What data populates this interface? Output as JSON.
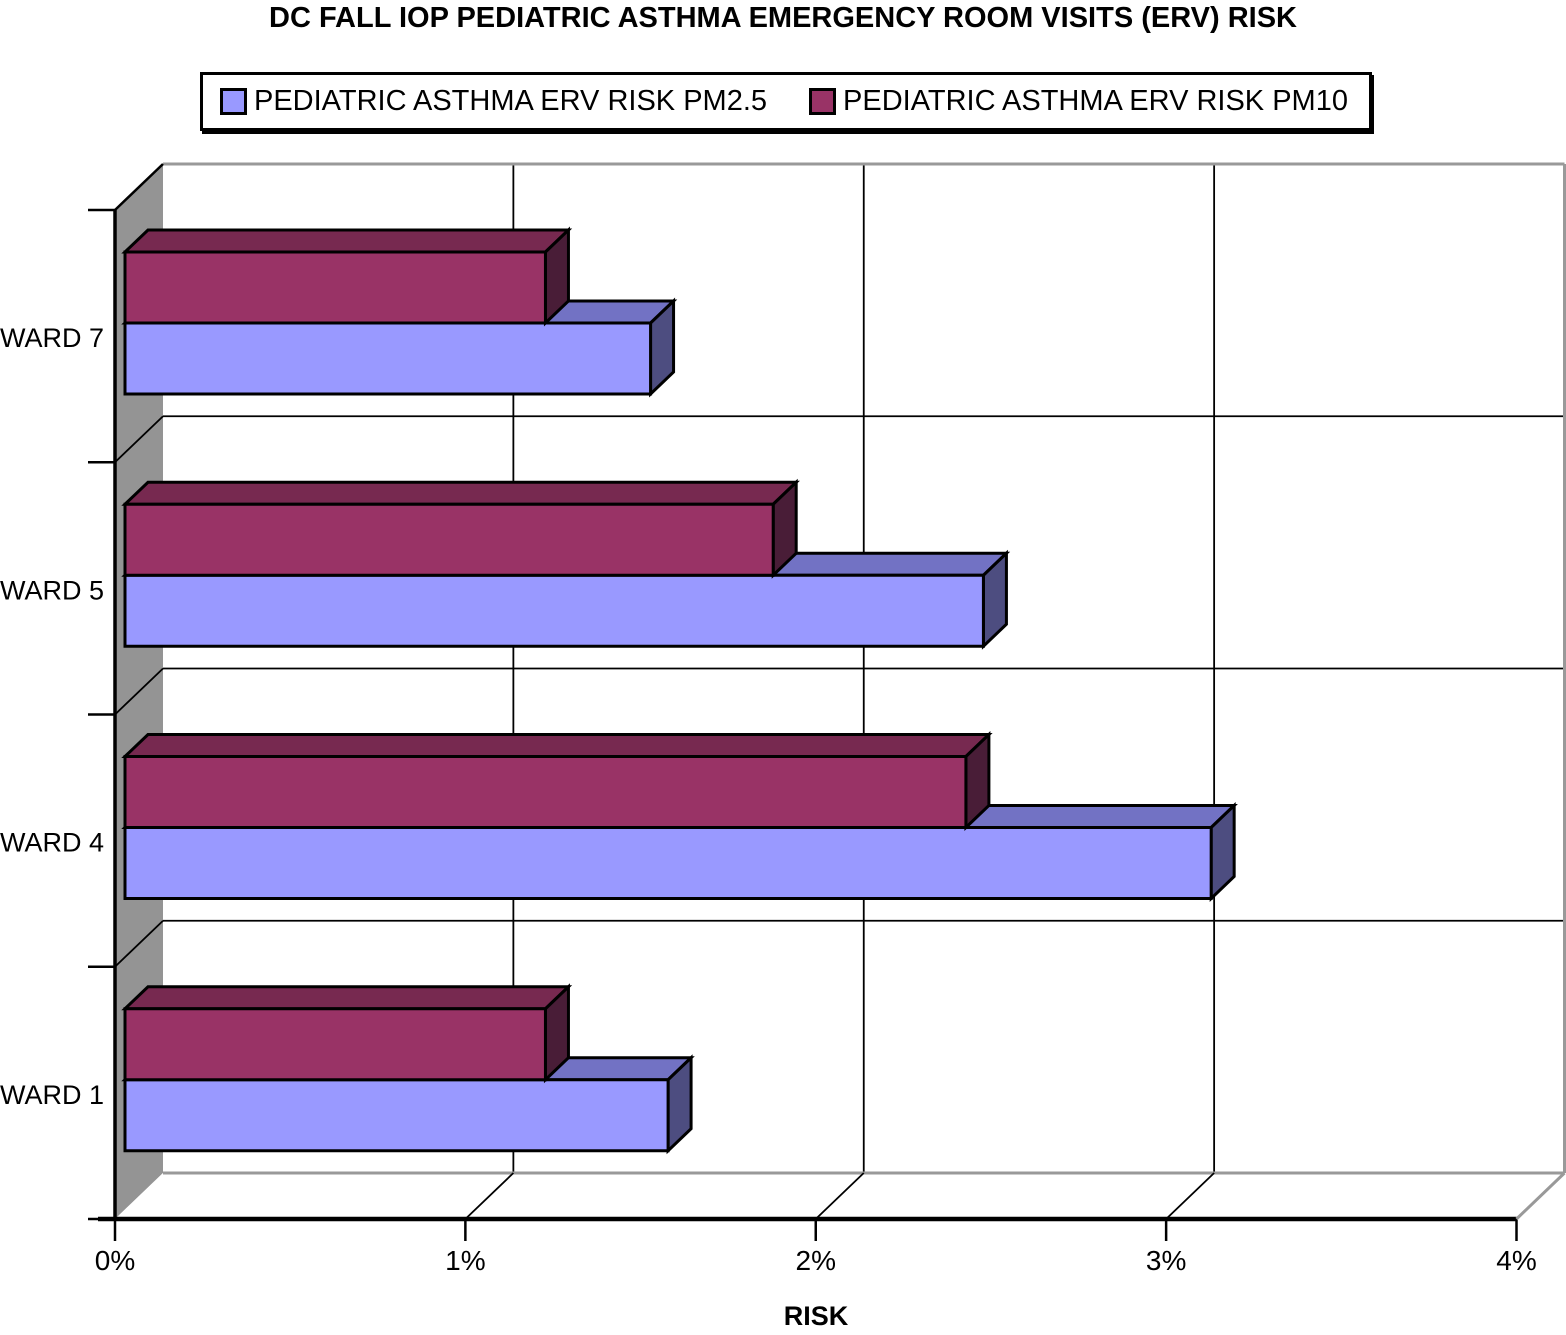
{
  "title": "DC FALL IOP PEDIATRIC ASTHMA EMERGENCY ROOM VISITS (ERV) RISK",
  "legend": {
    "items": [
      {
        "label": "PEDIATRIC ASTHMA ERV RISK PM2.5",
        "color": "#9999FF"
      },
      {
        "label": "PEDIATRIC ASTHMA ERV RISK PM10",
        "color": "#993366"
      }
    ]
  },
  "chart_data": {
    "type": "bar",
    "orientation": "horizontal",
    "style": "3d",
    "title": "DC FALL IOP PEDIATRIC ASTHMA EMERGENCY ROOM VISITS (ERV) RISK",
    "categories": [
      "WARD 7",
      "WARD 5",
      "WARD 4",
      "WARD 1"
    ],
    "series": [
      {
        "key": "pm2-5",
        "name": "PEDIATRIC ASTHMA ERV RISK PM2.5",
        "color": "#9999FF",
        "top_color": "#7272C4",
        "side_color": "#4D4D80",
        "values": [
          1.5,
          2.45,
          3.1,
          1.55
        ]
      },
      {
        "key": "pm10",
        "name": "PEDIATRIC ASTHMA ERV RISK PM10",
        "color": "#993366",
        "top_color": "#772950",
        "side_color": "#491D37",
        "values": [
          1.2,
          1.85,
          2.4,
          1.2
        ]
      }
    ],
    "xlabel": "RISK",
    "ylabel": "",
    "unit": "%",
    "xlim": [
      0,
      4
    ],
    "x_ticks": [
      {
        "label": "0%",
        "value": 0
      },
      {
        "label": "1%",
        "value": 1
      },
      {
        "label": "2%",
        "value": 2
      },
      {
        "label": "3%",
        "value": 3
      },
      {
        "label": "4%",
        "value": 4
      }
    ],
    "gridlines": true,
    "legend_position": "top"
  }
}
